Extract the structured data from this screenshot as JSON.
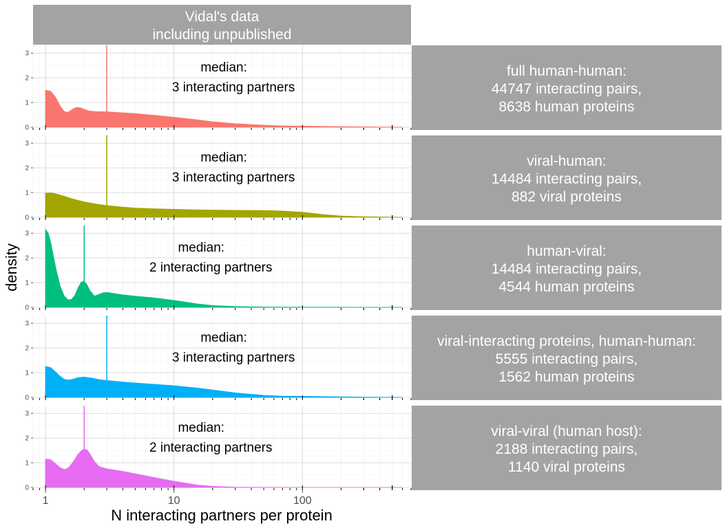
{
  "chart_data": {
    "type": "area",
    "title": "",
    "column_strip": [
      "Vidal's data",
      "including unpublished"
    ],
    "xlabel": "N interacting partners per protein",
    "ylabel": "density",
    "x_scale": "log10",
    "xlim": [
      0.8,
      700
    ],
    "x_ticks": [
      1,
      10,
      100
    ],
    "x_tick_labels": [
      "1",
      "10",
      "100"
    ],
    "ylim": [
      0,
      3.2
    ],
    "y_ticks": [
      0,
      1,
      2,
      3
    ],
    "y_tick_labels": [
      "0",
      "1",
      "2",
      "3"
    ],
    "grid": true,
    "legend": "none",
    "panels": [
      {
        "strip": [
          "full human-human:",
          "44747 interacting pairs,",
          "8638 human proteins"
        ],
        "color": "#F8766D",
        "median": 3,
        "annotation": [
          "median:",
          "3 interacting partners"
        ],
        "x": [
          1,
          1.1,
          1.2,
          1.3,
          1.4,
          1.5,
          1.6,
          1.7,
          1.8,
          1.9,
          2,
          2.2,
          2.5,
          3,
          4,
          5,
          7,
          10,
          15,
          20,
          30,
          50,
          70,
          100,
          200,
          300,
          500,
          600
        ],
        "y": [
          1.5,
          1.45,
          1.2,
          0.85,
          0.63,
          0.6,
          0.7,
          0.78,
          0.8,
          0.77,
          0.72,
          0.65,
          0.63,
          0.62,
          0.58,
          0.55,
          0.48,
          0.4,
          0.3,
          0.22,
          0.14,
          0.08,
          0.05,
          0.04,
          0.02,
          0.01,
          0.005,
          0
        ]
      },
      {
        "strip": [
          "viral-human:",
          "14484 interacting pairs,",
          "882 viral proteins"
        ],
        "color": "#A3A500",
        "median": 3,
        "annotation": [
          "median:",
          "3 interacting partners"
        ],
        "x": [
          1,
          1.1,
          1.2,
          1.4,
          1.6,
          2,
          2.5,
          3,
          4,
          5,
          7,
          10,
          15,
          20,
          30,
          50,
          70,
          100,
          150,
          200,
          300,
          500,
          600
        ],
        "y": [
          0.97,
          0.98,
          0.95,
          0.85,
          0.75,
          0.62,
          0.53,
          0.47,
          0.41,
          0.37,
          0.34,
          0.32,
          0.3,
          0.29,
          0.28,
          0.27,
          0.25,
          0.2,
          0.1,
          0.05,
          0.02,
          0.005,
          0
        ]
      },
      {
        "strip": [
          "human-viral:",
          "14484 interacting pairs,",
          "4544 human proteins"
        ],
        "color": "#00BF7D",
        "median": 2,
        "annotation": [
          "median:",
          "2 interacting partners"
        ],
        "x": [
          1,
          1.05,
          1.1,
          1.2,
          1.3,
          1.4,
          1.5,
          1.6,
          1.7,
          1.8,
          1.9,
          2,
          2.1,
          2.2,
          2.4,
          2.6,
          2.8,
          3,
          3.5,
          4,
          5,
          7,
          10,
          15,
          20,
          30,
          50,
          100,
          200,
          600
        ],
        "y": [
          3.15,
          3.0,
          2.6,
          1.6,
          0.85,
          0.45,
          0.3,
          0.32,
          0.5,
          0.8,
          1.02,
          1.05,
          0.92,
          0.7,
          0.45,
          0.52,
          0.58,
          0.6,
          0.55,
          0.5,
          0.45,
          0.38,
          0.28,
          0.14,
          0.07,
          0.03,
          0.01,
          0.005,
          0.002,
          0
        ]
      },
      {
        "strip": [
          "viral-interacting proteins, human-human:",
          "5555 interacting pairs,",
          "1562 human proteins"
        ],
        "color": "#00B0F6",
        "median": 3,
        "annotation": [
          "median:",
          "3 interacting partners"
        ],
        "x": [
          1,
          1.1,
          1.2,
          1.3,
          1.4,
          1.5,
          1.6,
          1.8,
          2,
          2.3,
          2.6,
          3,
          4,
          5,
          7,
          10,
          15,
          20,
          30,
          50,
          70,
          100,
          200,
          300,
          600
        ],
        "y": [
          1.25,
          1.2,
          1.02,
          0.85,
          0.73,
          0.7,
          0.72,
          0.8,
          0.82,
          0.78,
          0.72,
          0.68,
          0.62,
          0.58,
          0.53,
          0.47,
          0.38,
          0.3,
          0.18,
          0.08,
          0.05,
          0.04,
          0.02,
          0.01,
          0
        ]
      },
      {
        "strip": [
          "viral-viral (human host):",
          "2188 interacting pairs,",
          "1140 viral proteins"
        ],
        "color": "#E76BF3",
        "median": 2,
        "annotation": [
          "median:",
          "2 interacting partners"
        ],
        "x": [
          1,
          1.1,
          1.2,
          1.3,
          1.4,
          1.5,
          1.6,
          1.7,
          1.8,
          1.9,
          2,
          2.1,
          2.2,
          2.4,
          2.6,
          3,
          4,
          5,
          7,
          10,
          15,
          20,
          30,
          50,
          100,
          600
        ],
        "y": [
          1.15,
          1.12,
          0.95,
          0.8,
          0.72,
          0.78,
          0.95,
          1.15,
          1.35,
          1.48,
          1.55,
          1.52,
          1.38,
          1.05,
          0.85,
          0.75,
          0.65,
          0.55,
          0.4,
          0.25,
          0.1,
          0.04,
          0.01,
          0.003,
          0.001,
          0
        ]
      }
    ]
  }
}
